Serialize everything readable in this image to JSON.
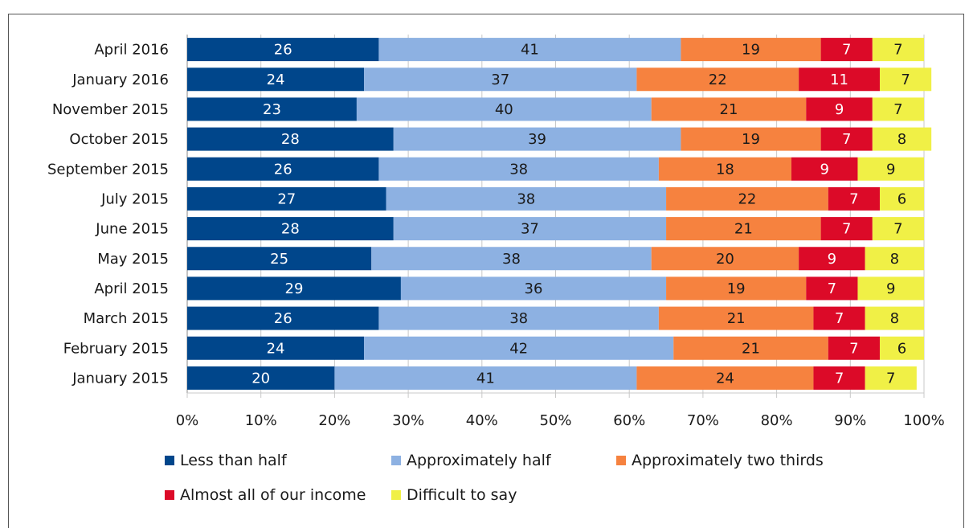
{
  "title": "",
  "chart_data": {
    "type": "bar",
    "orientation": "horizontal",
    "stacked": true,
    "title": "",
    "xlabel": "",
    "ylabel": "",
    "xlim": [
      0,
      100
    ],
    "x_ticks": [
      "0%",
      "10%",
      "20%",
      "30%",
      "40%",
      "50%",
      "60%",
      "70%",
      "80%",
      "90%",
      "100%"
    ],
    "grid": true,
    "legend_position": "bottom",
    "categories": [
      "April 2016",
      "January 2016",
      "November 2015",
      "October 2015",
      "September 2015",
      "July 2015",
      "June 2015",
      "May 2015",
      "April 2015",
      "March 2015",
      "February 2015",
      "January 2015"
    ],
    "series": [
      {
        "name": "Less than half",
        "color": "#00468b",
        "values": [
          26,
          24,
          23,
          28,
          26,
          27,
          28,
          25,
          29,
          26,
          24,
          20
        ]
      },
      {
        "name": "Approximately half",
        "color": "#8db1e2",
        "values": [
          41,
          37,
          40,
          39,
          38,
          38,
          37,
          38,
          36,
          38,
          42,
          41
        ]
      },
      {
        "name": "Approximately two thirds",
        "color": "#f6823f",
        "values": [
          19,
          22,
          21,
          19,
          18,
          22,
          21,
          20,
          19,
          21,
          21,
          24
        ]
      },
      {
        "name": "Almost all of our income",
        "color": "#dc0a28",
        "values": [
          7,
          11,
          9,
          7,
          9,
          7,
          7,
          9,
          7,
          7,
          7,
          7
        ]
      },
      {
        "name": "Difficult to say",
        "color": "#f0f046",
        "values": [
          7,
          7,
          7,
          8,
          9,
          6,
          7,
          8,
          9,
          8,
          6,
          7
        ]
      }
    ]
  }
}
